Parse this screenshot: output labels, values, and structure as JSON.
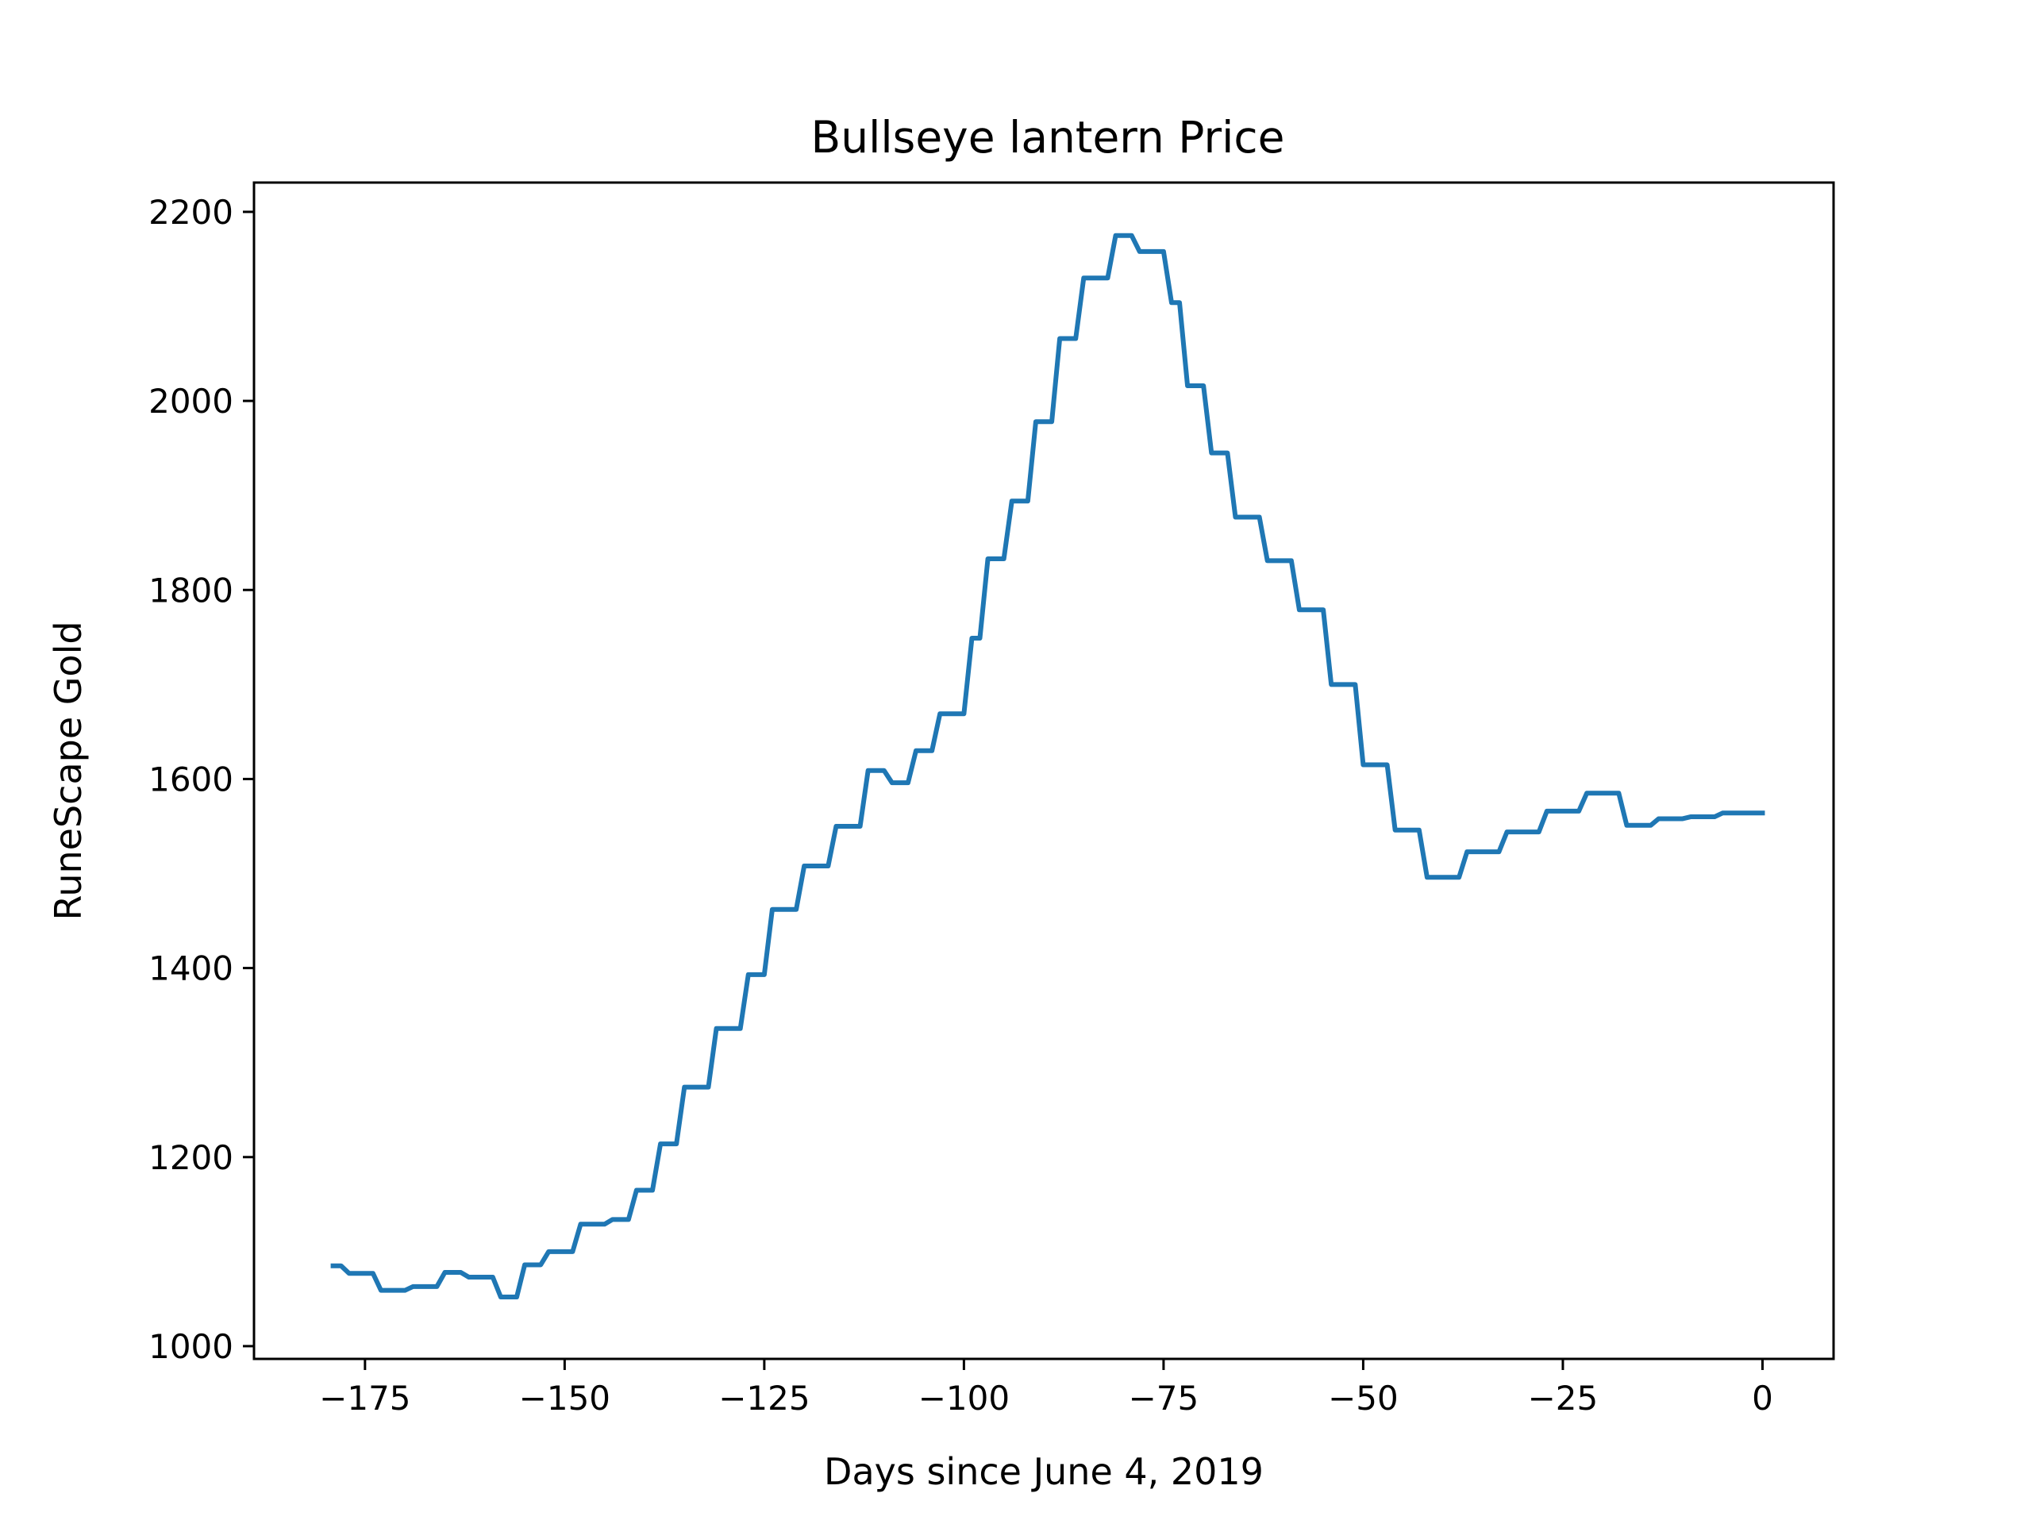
{
  "chart_data": {
    "type": "line",
    "title": "Bullseye lantern Price",
    "xlabel": "Days since June 4, 2019",
    "ylabel": "RuneScape Gold",
    "xlim": [
      -188.9,
      8.9
    ],
    "ylim": [
      986.5,
      2231
    ],
    "xticks": [
      -175,
      -150,
      -125,
      -100,
      -75,
      -50,
      -25,
      0
    ],
    "xtick_labels": [
      "−175",
      "−150",
      "−125",
      "−100",
      "−75",
      "−50",
      "−25",
      "0"
    ],
    "yticks": [
      1000,
      1200,
      1400,
      1600,
      1800,
      2000,
      2200
    ],
    "ytick_labels": [
      "1000",
      "1200",
      "1400",
      "1600",
      "1800",
      "2000",
      "2200"
    ],
    "grid": false,
    "legend": "none",
    "series": [
      {
        "color": "#1f77b4",
        "points": [
          [
            -179,
            1085
          ],
          [
            -178,
            1085
          ],
          [
            -177,
            1077
          ],
          [
            -176,
            1077
          ],
          [
            -175,
            1077
          ],
          [
            -174,
            1077
          ],
          [
            -173,
            1059
          ],
          [
            -172,
            1059
          ],
          [
            -171,
            1059
          ],
          [
            -170,
            1059
          ],
          [
            -169,
            1063
          ],
          [
            -168,
            1063
          ],
          [
            -167,
            1063
          ],
          [
            -166,
            1063
          ],
          [
            -165,
            1078
          ],
          [
            -164,
            1078
          ],
          [
            -163,
            1078
          ],
          [
            -162,
            1073
          ],
          [
            -161,
            1073
          ],
          [
            -160,
            1073
          ],
          [
            -159,
            1073
          ],
          [
            -158,
            1052
          ],
          [
            -157,
            1052
          ],
          [
            -156,
            1052
          ],
          [
            -155,
            1086
          ],
          [
            -154,
            1086
          ],
          [
            -153,
            1086
          ],
          [
            -152,
            1100
          ],
          [
            -151,
            1100
          ],
          [
            -150,
            1100
          ],
          [
            -149,
            1100
          ],
          [
            -148,
            1129
          ],
          [
            -147,
            1129
          ],
          [
            -146,
            1129
          ],
          [
            -145,
            1129
          ],
          [
            -144,
            1134
          ],
          [
            -143,
            1134
          ],
          [
            -142,
            1134
          ],
          [
            -141,
            1165
          ],
          [
            -140,
            1165
          ],
          [
            -139,
            1165
          ],
          [
            -138,
            1214
          ],
          [
            -137,
            1214
          ],
          [
            -136,
            1214
          ],
          [
            -135,
            1274
          ],
          [
            -134,
            1274
          ],
          [
            -133,
            1274
          ],
          [
            -132,
            1274
          ],
          [
            -131,
            1336
          ],
          [
            -130,
            1336
          ],
          [
            -129,
            1336
          ],
          [
            -128,
            1336
          ],
          [
            -127,
            1393
          ],
          [
            -126,
            1393
          ],
          [
            -125,
            1393
          ],
          [
            -124,
            1462
          ],
          [
            -123,
            1462
          ],
          [
            -122,
            1462
          ],
          [
            -121,
            1462
          ],
          [
            -120,
            1508
          ],
          [
            -119,
            1508
          ],
          [
            -118,
            1508
          ],
          [
            -117,
            1508
          ],
          [
            -116,
            1550
          ],
          [
            -115,
            1550
          ],
          [
            -114,
            1550
          ],
          [
            -113,
            1550
          ],
          [
            -112,
            1609
          ],
          [
            -111,
            1609
          ],
          [
            -110,
            1609
          ],
          [
            -109,
            1596
          ],
          [
            -108,
            1596
          ],
          [
            -107,
            1596
          ],
          [
            -106,
            1630
          ],
          [
            -105,
            1630
          ],
          [
            -104,
            1630
          ],
          [
            -103,
            1669
          ],
          [
            -102,
            1669
          ],
          [
            -101,
            1669
          ],
          [
            -100,
            1669
          ],
          [
            -99,
            1749
          ],
          [
            -98,
            1749
          ],
          [
            -97,
            1833
          ],
          [
            -96,
            1833
          ],
          [
            -95,
            1833
          ],
          [
            -94,
            1894
          ],
          [
            -93,
            1894
          ],
          [
            -92,
            1894
          ],
          [
            -91,
            1978
          ],
          [
            -90,
            1978
          ],
          [
            -89,
            1978
          ],
          [
            -88,
            2066
          ],
          [
            -87,
            2066
          ],
          [
            -86,
            2066
          ],
          [
            -85,
            2130
          ],
          [
            -84,
            2130
          ],
          [
            -83,
            2130
          ],
          [
            -82,
            2130
          ],
          [
            -81,
            2175
          ],
          [
            -80,
            2175
          ],
          [
            -79,
            2175
          ],
          [
            -78,
            2158
          ],
          [
            -77,
            2158
          ],
          [
            -76,
            2158
          ],
          [
            -75,
            2158
          ],
          [
            -74,
            2104
          ],
          [
            -73,
            2104
          ],
          [
            -72,
            2016
          ],
          [
            -71,
            2016
          ],
          [
            -70,
            2016
          ],
          [
            -69,
            1945
          ],
          [
            -68,
            1945
          ],
          [
            -67,
            1945
          ],
          [
            -66,
            1877
          ],
          [
            -65,
            1877
          ],
          [
            -64,
            1877
          ],
          [
            -63,
            1877
          ],
          [
            -62,
            1831
          ],
          [
            -61,
            1831
          ],
          [
            -60,
            1831
          ],
          [
            -59,
            1831
          ],
          [
            -58,
            1779
          ],
          [
            -57,
            1779
          ],
          [
            -56,
            1779
          ],
          [
            -55,
            1779
          ],
          [
            -54,
            1700
          ],
          [
            -53,
            1700
          ],
          [
            -52,
            1700
          ],
          [
            -51,
            1700
          ],
          [
            -50,
            1615
          ],
          [
            -49,
            1615
          ],
          [
            -48,
            1615
          ],
          [
            -47,
            1615
          ],
          [
            -46,
            1546
          ],
          [
            -45,
            1546
          ],
          [
            -44,
            1546
          ],
          [
            -43,
            1546
          ],
          [
            -42,
            1496
          ],
          [
            -41,
            1496
          ],
          [
            -40,
            1496
          ],
          [
            -39,
            1496
          ],
          [
            -38,
            1496
          ],
          [
            -37,
            1523
          ],
          [
            -36,
            1523
          ],
          [
            -35,
            1523
          ],
          [
            -34,
            1523
          ],
          [
            -33,
            1523
          ],
          [
            -32,
            1544
          ],
          [
            -31,
            1544
          ],
          [
            -30,
            1544
          ],
          [
            -29,
            1544
          ],
          [
            -28,
            1544
          ],
          [
            -27,
            1566
          ],
          [
            -26,
            1566
          ],
          [
            -25,
            1566
          ],
          [
            -24,
            1566
          ],
          [
            -23,
            1566
          ],
          [
            -22,
            1585
          ],
          [
            -21,
            1585
          ],
          [
            -20,
            1585
          ],
          [
            -19,
            1585
          ],
          [
            -18,
            1585
          ],
          [
            -17,
            1551
          ],
          [
            -16,
            1551
          ],
          [
            -15,
            1551
          ],
          [
            -14,
            1551
          ],
          [
            -13,
            1558
          ],
          [
            -12,
            1558
          ],
          [
            -11,
            1558
          ],
          [
            -10,
            1558
          ],
          [
            -9,
            1560
          ],
          [
            -8,
            1560
          ],
          [
            -7,
            1560
          ],
          [
            -6,
            1560
          ],
          [
            -5,
            1564
          ],
          [
            -4,
            1564
          ],
          [
            -3,
            1564
          ],
          [
            -2,
            1564
          ],
          [
            -1,
            1564
          ],
          [
            0,
            1564
          ]
        ]
      }
    ]
  }
}
